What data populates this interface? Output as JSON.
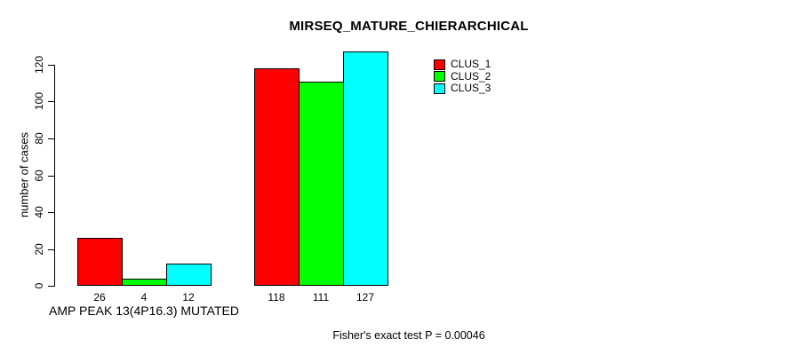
{
  "chart_data": {
    "type": "bar",
    "title": "MIRSEQ_MATURE_CHIERARCHICAL",
    "ylabel": "number of cases",
    "xlabel": "",
    "ylim": [
      0,
      120
    ],
    "yticks": [
      0,
      20,
      40,
      60,
      80,
      100,
      120
    ],
    "grid": false,
    "legend_position": "top-right",
    "categories": [
      "AMP PEAK 13(4P16.3) MUTATED",
      ""
    ],
    "series": [
      {
        "name": "CLUS_1",
        "color": "#ff0000",
        "values": [
          26,
          118
        ]
      },
      {
        "name": "CLUS_2",
        "color": "#00ff00",
        "values": [
          4,
          111
        ]
      },
      {
        "name": "CLUS_3",
        "color": "#00ffff",
        "values": [
          12,
          127
        ]
      }
    ],
    "bar_value_labels": [
      [
        "26",
        "4",
        "12"
      ],
      [
        "118",
        "111",
        "127"
      ]
    ],
    "annotation": "Fisher's exact test P = 0.00046"
  },
  "colors": {
    "background": "#ffffff",
    "axis": "#000000",
    "text": "#000000",
    "clus_1": "#ff0000",
    "clus_2": "#00ff00",
    "clus_3": "#00ffff"
  }
}
